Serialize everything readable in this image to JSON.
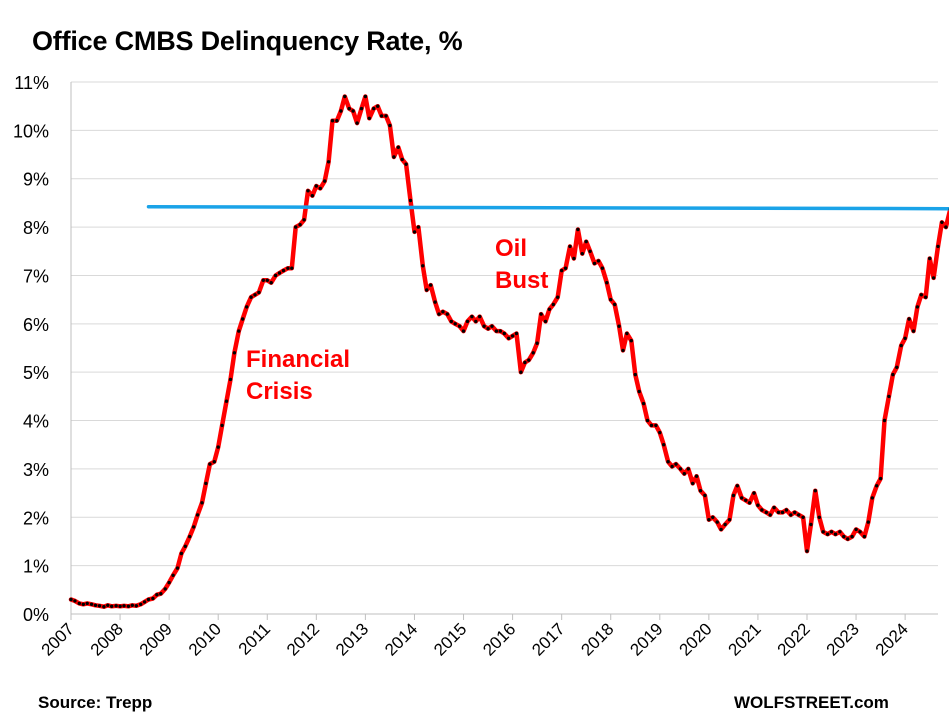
{
  "chart_data": {
    "type": "line",
    "title": "Office CMBS Delinquency Rate, %",
    "xlabel": "",
    "ylabel": "",
    "xlim": [
      2007,
      2024.67
    ],
    "ylim": [
      0,
      11
    ],
    "x_ticks": [
      "2007",
      "2008",
      "2009",
      "2010",
      "2011",
      "2012",
      "2013",
      "2014",
      "2015",
      "2016",
      "2017",
      "2018",
      "2019",
      "2020",
      "2021",
      "2022",
      "2023",
      "2024"
    ],
    "y_ticks": [
      "0%",
      "1%",
      "2%",
      "3%",
      "4%",
      "5%",
      "6%",
      "7%",
      "8%",
      "9%",
      "10%",
      "11%"
    ],
    "grid": "horizontal",
    "series": [
      {
        "name": "Office CMBS delinquency rate",
        "color": "#ff0000",
        "marker_color": "#000000",
        "points": [
          [
            2007.0,
            0.3
          ],
          [
            2007.08,
            0.27
          ],
          [
            2007.17,
            0.22
          ],
          [
            2007.25,
            0.2
          ],
          [
            2007.33,
            0.22
          ],
          [
            2007.42,
            0.2
          ],
          [
            2007.5,
            0.18
          ],
          [
            2007.58,
            0.17
          ],
          [
            2007.67,
            0.15
          ],
          [
            2007.75,
            0.18
          ],
          [
            2007.83,
            0.16
          ],
          [
            2007.92,
            0.17
          ],
          [
            2008.0,
            0.16
          ],
          [
            2008.08,
            0.17
          ],
          [
            2008.17,
            0.16
          ],
          [
            2008.25,
            0.18
          ],
          [
            2008.33,
            0.17
          ],
          [
            2008.42,
            0.2
          ],
          [
            2008.5,
            0.25
          ],
          [
            2008.58,
            0.3
          ],
          [
            2008.67,
            0.32
          ],
          [
            2008.75,
            0.4
          ],
          [
            2008.83,
            0.42
          ],
          [
            2008.92,
            0.52
          ],
          [
            2009.0,
            0.65
          ],
          [
            2009.08,
            0.8
          ],
          [
            2009.17,
            0.95
          ],
          [
            2009.25,
            1.25
          ],
          [
            2009.33,
            1.4
          ],
          [
            2009.42,
            1.6
          ],
          [
            2009.5,
            1.8
          ],
          [
            2009.58,
            2.05
          ],
          [
            2009.67,
            2.3
          ],
          [
            2009.75,
            2.7
          ],
          [
            2009.83,
            3.1
          ],
          [
            2009.92,
            3.15
          ],
          [
            2010.0,
            3.45
          ],
          [
            2010.08,
            3.9
          ],
          [
            2010.17,
            4.4
          ],
          [
            2010.25,
            4.85
          ],
          [
            2010.33,
            5.4
          ],
          [
            2010.42,
            5.85
          ],
          [
            2010.5,
            6.1
          ],
          [
            2010.58,
            6.35
          ],
          [
            2010.67,
            6.55
          ],
          [
            2010.75,
            6.6
          ],
          [
            2010.83,
            6.65
          ],
          [
            2010.92,
            6.9
          ],
          [
            2011.0,
            6.9
          ],
          [
            2011.08,
            6.85
          ],
          [
            2011.17,
            7.0
          ],
          [
            2011.25,
            7.05
          ],
          [
            2011.33,
            7.1
          ],
          [
            2011.42,
            7.15
          ],
          [
            2011.5,
            7.15
          ],
          [
            2011.58,
            8.0
          ],
          [
            2011.67,
            8.05
          ],
          [
            2011.75,
            8.15
          ],
          [
            2011.83,
            8.75
          ],
          [
            2011.92,
            8.65
          ],
          [
            2012.0,
            8.85
          ],
          [
            2012.08,
            8.8
          ],
          [
            2012.17,
            8.95
          ],
          [
            2012.25,
            9.35
          ],
          [
            2012.33,
            10.2
          ],
          [
            2012.42,
            10.2
          ],
          [
            2012.5,
            10.4
          ],
          [
            2012.58,
            10.7
          ],
          [
            2012.67,
            10.45
          ],
          [
            2012.75,
            10.4
          ],
          [
            2012.83,
            10.15
          ],
          [
            2012.92,
            10.45
          ],
          [
            2013.0,
            10.7
          ],
          [
            2013.08,
            10.25
          ],
          [
            2013.17,
            10.45
          ],
          [
            2013.25,
            10.5
          ],
          [
            2013.33,
            10.3
          ],
          [
            2013.42,
            10.3
          ],
          [
            2013.5,
            10.1
          ],
          [
            2013.58,
            9.45
          ],
          [
            2013.67,
            9.65
          ],
          [
            2013.75,
            9.4
          ],
          [
            2013.83,
            9.3
          ],
          [
            2013.92,
            8.55
          ],
          [
            2014.0,
            7.9
          ],
          [
            2014.08,
            8.0
          ],
          [
            2014.17,
            7.2
          ],
          [
            2014.25,
            6.7
          ],
          [
            2014.33,
            6.8
          ],
          [
            2014.42,
            6.45
          ],
          [
            2014.5,
            6.2
          ],
          [
            2014.58,
            6.25
          ],
          [
            2014.67,
            6.2
          ],
          [
            2014.75,
            6.05
          ],
          [
            2014.83,
            6.0
          ],
          [
            2014.92,
            5.95
          ],
          [
            2015.0,
            5.85
          ],
          [
            2015.08,
            6.05
          ],
          [
            2015.17,
            6.15
          ],
          [
            2015.25,
            6.05
          ],
          [
            2015.33,
            6.15
          ],
          [
            2015.42,
            5.95
          ],
          [
            2015.5,
            5.9
          ],
          [
            2015.58,
            5.95
          ],
          [
            2015.67,
            5.85
          ],
          [
            2015.75,
            5.85
          ],
          [
            2015.83,
            5.8
          ],
          [
            2015.92,
            5.7
          ],
          [
            2016.0,
            5.75
          ],
          [
            2016.08,
            5.8
          ],
          [
            2016.17,
            5.0
          ],
          [
            2016.25,
            5.2
          ],
          [
            2016.33,
            5.25
          ],
          [
            2016.42,
            5.4
          ],
          [
            2016.5,
            5.6
          ],
          [
            2016.58,
            6.2
          ],
          [
            2016.67,
            6.05
          ],
          [
            2016.75,
            6.3
          ],
          [
            2016.83,
            6.4
          ],
          [
            2016.92,
            6.55
          ],
          [
            2017.0,
            7.1
          ],
          [
            2017.08,
            7.15
          ],
          [
            2017.17,
            7.6
          ],
          [
            2017.25,
            7.35
          ],
          [
            2017.33,
            7.95
          ],
          [
            2017.42,
            7.45
          ],
          [
            2017.5,
            7.7
          ],
          [
            2017.58,
            7.5
          ],
          [
            2017.67,
            7.25
          ],
          [
            2017.75,
            7.3
          ],
          [
            2017.83,
            7.15
          ],
          [
            2017.92,
            6.85
          ],
          [
            2018.0,
            6.5
          ],
          [
            2018.08,
            6.4
          ],
          [
            2018.17,
            5.95
          ],
          [
            2018.25,
            5.45
          ],
          [
            2018.33,
            5.8
          ],
          [
            2018.42,
            5.65
          ],
          [
            2018.5,
            4.95
          ],
          [
            2018.58,
            4.6
          ],
          [
            2018.67,
            4.35
          ],
          [
            2018.75,
            4.0
          ],
          [
            2018.83,
            3.9
          ],
          [
            2018.92,
            3.9
          ],
          [
            2019.0,
            3.75
          ],
          [
            2019.08,
            3.5
          ],
          [
            2019.17,
            3.15
          ],
          [
            2019.25,
            3.05
          ],
          [
            2019.33,
            3.1
          ],
          [
            2019.42,
            3.0
          ],
          [
            2019.5,
            2.9
          ],
          [
            2019.58,
            3.0
          ],
          [
            2019.67,
            2.7
          ],
          [
            2019.75,
            2.85
          ],
          [
            2019.83,
            2.55
          ],
          [
            2019.92,
            2.45
          ],
          [
            2020.0,
            1.95
          ],
          [
            2020.08,
            2.0
          ],
          [
            2020.17,
            1.9
          ],
          [
            2020.25,
            1.75
          ],
          [
            2020.33,
            1.85
          ],
          [
            2020.42,
            1.95
          ],
          [
            2020.5,
            2.45
          ],
          [
            2020.58,
            2.65
          ],
          [
            2020.67,
            2.4
          ],
          [
            2020.75,
            2.35
          ],
          [
            2020.83,
            2.3
          ],
          [
            2020.92,
            2.5
          ],
          [
            2021.0,
            2.25
          ],
          [
            2021.08,
            2.15
          ],
          [
            2021.17,
            2.1
          ],
          [
            2021.25,
            2.05
          ],
          [
            2021.33,
            2.2
          ],
          [
            2021.42,
            2.1
          ],
          [
            2021.5,
            2.1
          ],
          [
            2021.58,
            2.15
          ],
          [
            2021.67,
            2.05
          ],
          [
            2021.75,
            2.1
          ],
          [
            2021.83,
            2.05
          ],
          [
            2021.92,
            2.0
          ],
          [
            2022.0,
            1.3
          ],
          [
            2022.08,
            1.85
          ],
          [
            2022.17,
            2.55
          ],
          [
            2022.25,
            2.0
          ],
          [
            2022.33,
            1.7
          ],
          [
            2022.42,
            1.65
          ],
          [
            2022.5,
            1.7
          ],
          [
            2022.58,
            1.65
          ],
          [
            2022.67,
            1.7
          ],
          [
            2022.75,
            1.6
          ],
          [
            2022.83,
            1.55
          ],
          [
            2022.92,
            1.6
          ],
          [
            2023.0,
            1.75
          ],
          [
            2023.08,
            1.7
          ],
          [
            2023.17,
            1.6
          ],
          [
            2023.25,
            1.9
          ],
          [
            2023.33,
            2.4
          ],
          [
            2023.42,
            2.65
          ],
          [
            2023.5,
            2.8
          ],
          [
            2023.58,
            4.0
          ],
          [
            2023.67,
            4.5
          ],
          [
            2023.75,
            4.95
          ],
          [
            2023.83,
            5.1
          ],
          [
            2023.92,
            5.55
          ],
          [
            2024.0,
            5.7
          ],
          [
            2024.08,
            6.1
          ],
          [
            2024.17,
            5.85
          ],
          [
            2024.25,
            6.35
          ],
          [
            2024.33,
            6.6
          ],
          [
            2024.42,
            6.55
          ],
          [
            2024.5,
            7.35
          ],
          [
            2024.58,
            6.95
          ],
          [
            2024.67,
            7.6
          ],
          [
            2024.75,
            8.1
          ],
          [
            2024.83,
            8.0
          ],
          [
            2024.92,
            8.37
          ]
        ]
      },
      {
        "name": "Reference level",
        "color": "#1aa3e8",
        "points": [
          [
            2008.58,
            8.42
          ],
          [
            2024.92,
            8.38
          ]
        ]
      }
    ],
    "annotations": [
      {
        "text": "Financial\nCrisis",
        "color": "#ff0000"
      },
      {
        "text": "Oil\nBust",
        "color": "#ff0000"
      }
    ]
  },
  "source_note": "Source: Trepp",
  "brand": "WOLFSTREET.com",
  "annotation_financial_line1": "Financial",
  "annotation_financial_line2": "Crisis",
  "annotation_oil_line1": "Oil",
  "annotation_oil_line2": "Bust"
}
